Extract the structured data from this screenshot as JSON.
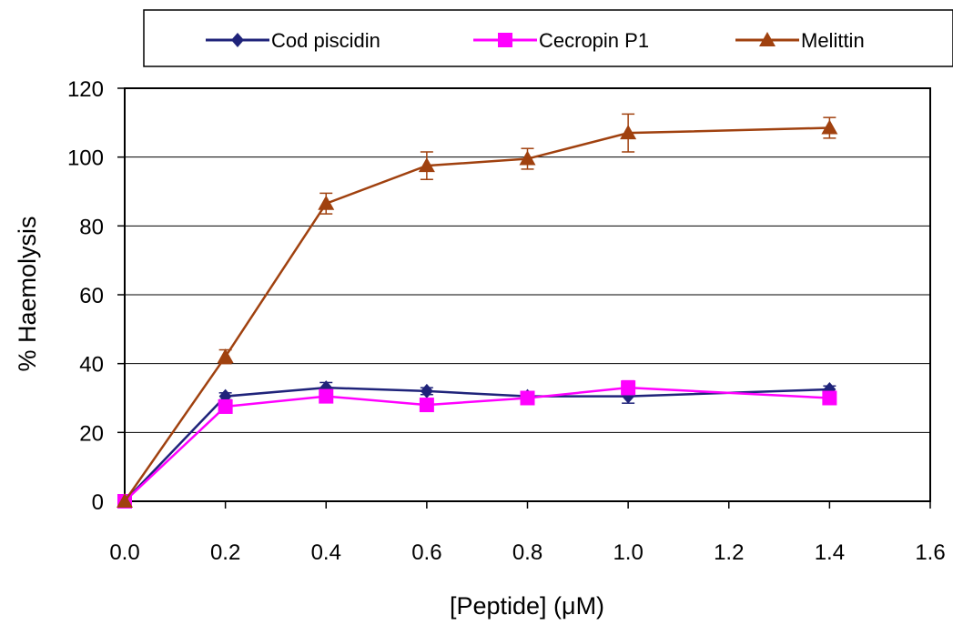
{
  "chart_data": {
    "type": "line",
    "title": "",
    "xlabel": "[Peptide] (μM)",
    "ylabel": "% Haemolysis",
    "xlim": [
      0,
      1.6
    ],
    "ylim": [
      0,
      120
    ],
    "xticks": [
      "0.0",
      "0.2",
      "0.4",
      "0.6",
      "0.8",
      "1.0",
      "1.2",
      "1.4",
      "1.6"
    ],
    "yticks": [
      "0",
      "20",
      "40",
      "60",
      "80",
      "100",
      "120"
    ],
    "grid": "horizontal",
    "legend_position": "top",
    "x": [
      0.0,
      0.2,
      0.4,
      0.6,
      0.8,
      1.0,
      1.4
    ],
    "series": [
      {
        "name": "Cod piscidin",
        "color": "#1f237a",
        "marker": "diamond",
        "values": [
          0,
          30.5,
          33,
          32,
          30.5,
          30.5,
          32.5
        ],
        "errors": [
          0,
          1,
          1.5,
          1,
          1,
          2,
          1
        ]
      },
      {
        "name": "Cecropin P1",
        "color": "#ff00ff",
        "marker": "square",
        "values": [
          0,
          27.5,
          30.5,
          28,
          30,
          33,
          30
        ],
        "errors": [
          0,
          1,
          1,
          1,
          1,
          2,
          1
        ]
      },
      {
        "name": "Melittin",
        "color": "#a0410f",
        "marker": "triangle",
        "values": [
          0,
          42,
          86.5,
          97.5,
          99.5,
          107,
          108.5
        ],
        "errors": [
          0,
          2,
          3,
          4,
          3,
          5.5,
          3
        ]
      }
    ]
  }
}
